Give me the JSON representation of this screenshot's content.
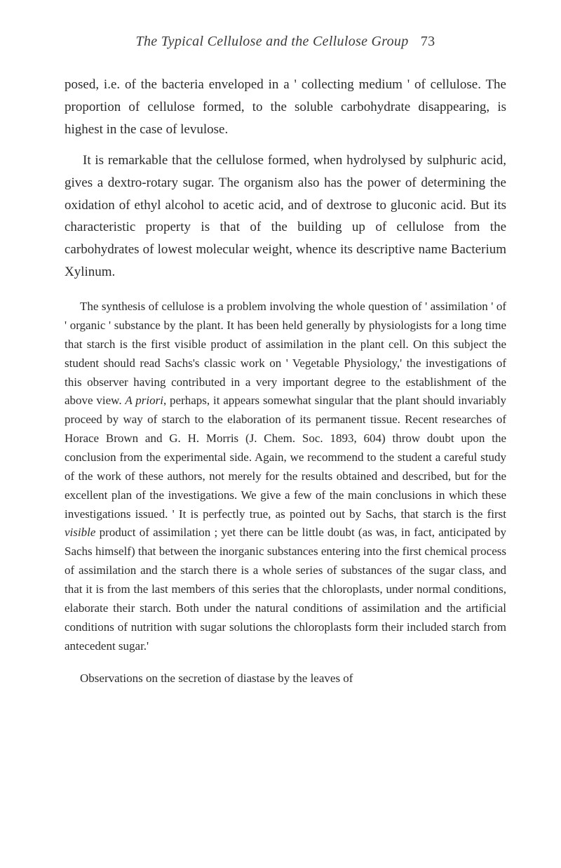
{
  "header": {
    "title_italic": "The Typical Cellulose and the Cellulose Group",
    "page_number": "73"
  },
  "body": {
    "p1": "posed, i.e. of the bacteria enveloped in a ' collecting medium ' of cellulose. The proportion of cellulose formed, to the soluble carbohydrate disappearing, is highest in the case of levulose.",
    "p2": "It is remarkable that the cellulose formed, when hydrolysed by sulphuric acid, gives a dextro-rotary sugar. The organism also has the power of determining the oxidation of ethyl alcohol to acetic acid, and of dextrose to gluconic acid. But its characteristic property is that of the building up of cellulose from the carbohydrates of lowest molecular weight, whence its descriptive name Bacterium Xylinum.",
    "p3_part1": "The synthesis of cellulose is a problem involving the whole question of ' assimilation ' of ' organic ' substance by the plant. It has been held generally by physiologists for a long time that starch is the first visible product of assimilation in the plant cell. On this subject the student should read Sachs's classic work on ' Vegetable Physiology,' the investigations of this observer having contributed in a very important degree to the establishment of the above view. ",
    "p3_italic1": "A priori",
    "p3_part2": ", perhaps, it appears somewhat singular that the plant should invariably proceed by way of starch to the elaboration of its permanent tissue. Recent researches of Horace Brown and G. H. Morris (J. Chem. Soc. 1893, 604) throw doubt upon the conclusion from the experimental side. Again, we recommend to the student a careful study of the work of these authors, not merely for the results obtained and described, but for the excellent plan of the investigations. We give a few of the main conclusions in which these investigations issued. ' It is perfectly true, as pointed out by Sachs, that starch is the first ",
    "p3_italic2": "visible",
    "p3_part3": " product of assimilation ; yet there can be little doubt (as was, in fact, anticipated by Sachs himself) that between the inorganic substances entering into the first chemical process of assimilation and the starch there is a whole series of substances of the sugar class, and that it is from the last members of this series that the chloroplasts, under normal conditions, elaborate their starch. Both under the natural conditions of assimilation and the artificial conditions of nutrition with sugar solutions the chloroplasts form their included starch from antecedent sugar.'",
    "p4": "Observations on the secretion of diastase by the leaves of"
  }
}
